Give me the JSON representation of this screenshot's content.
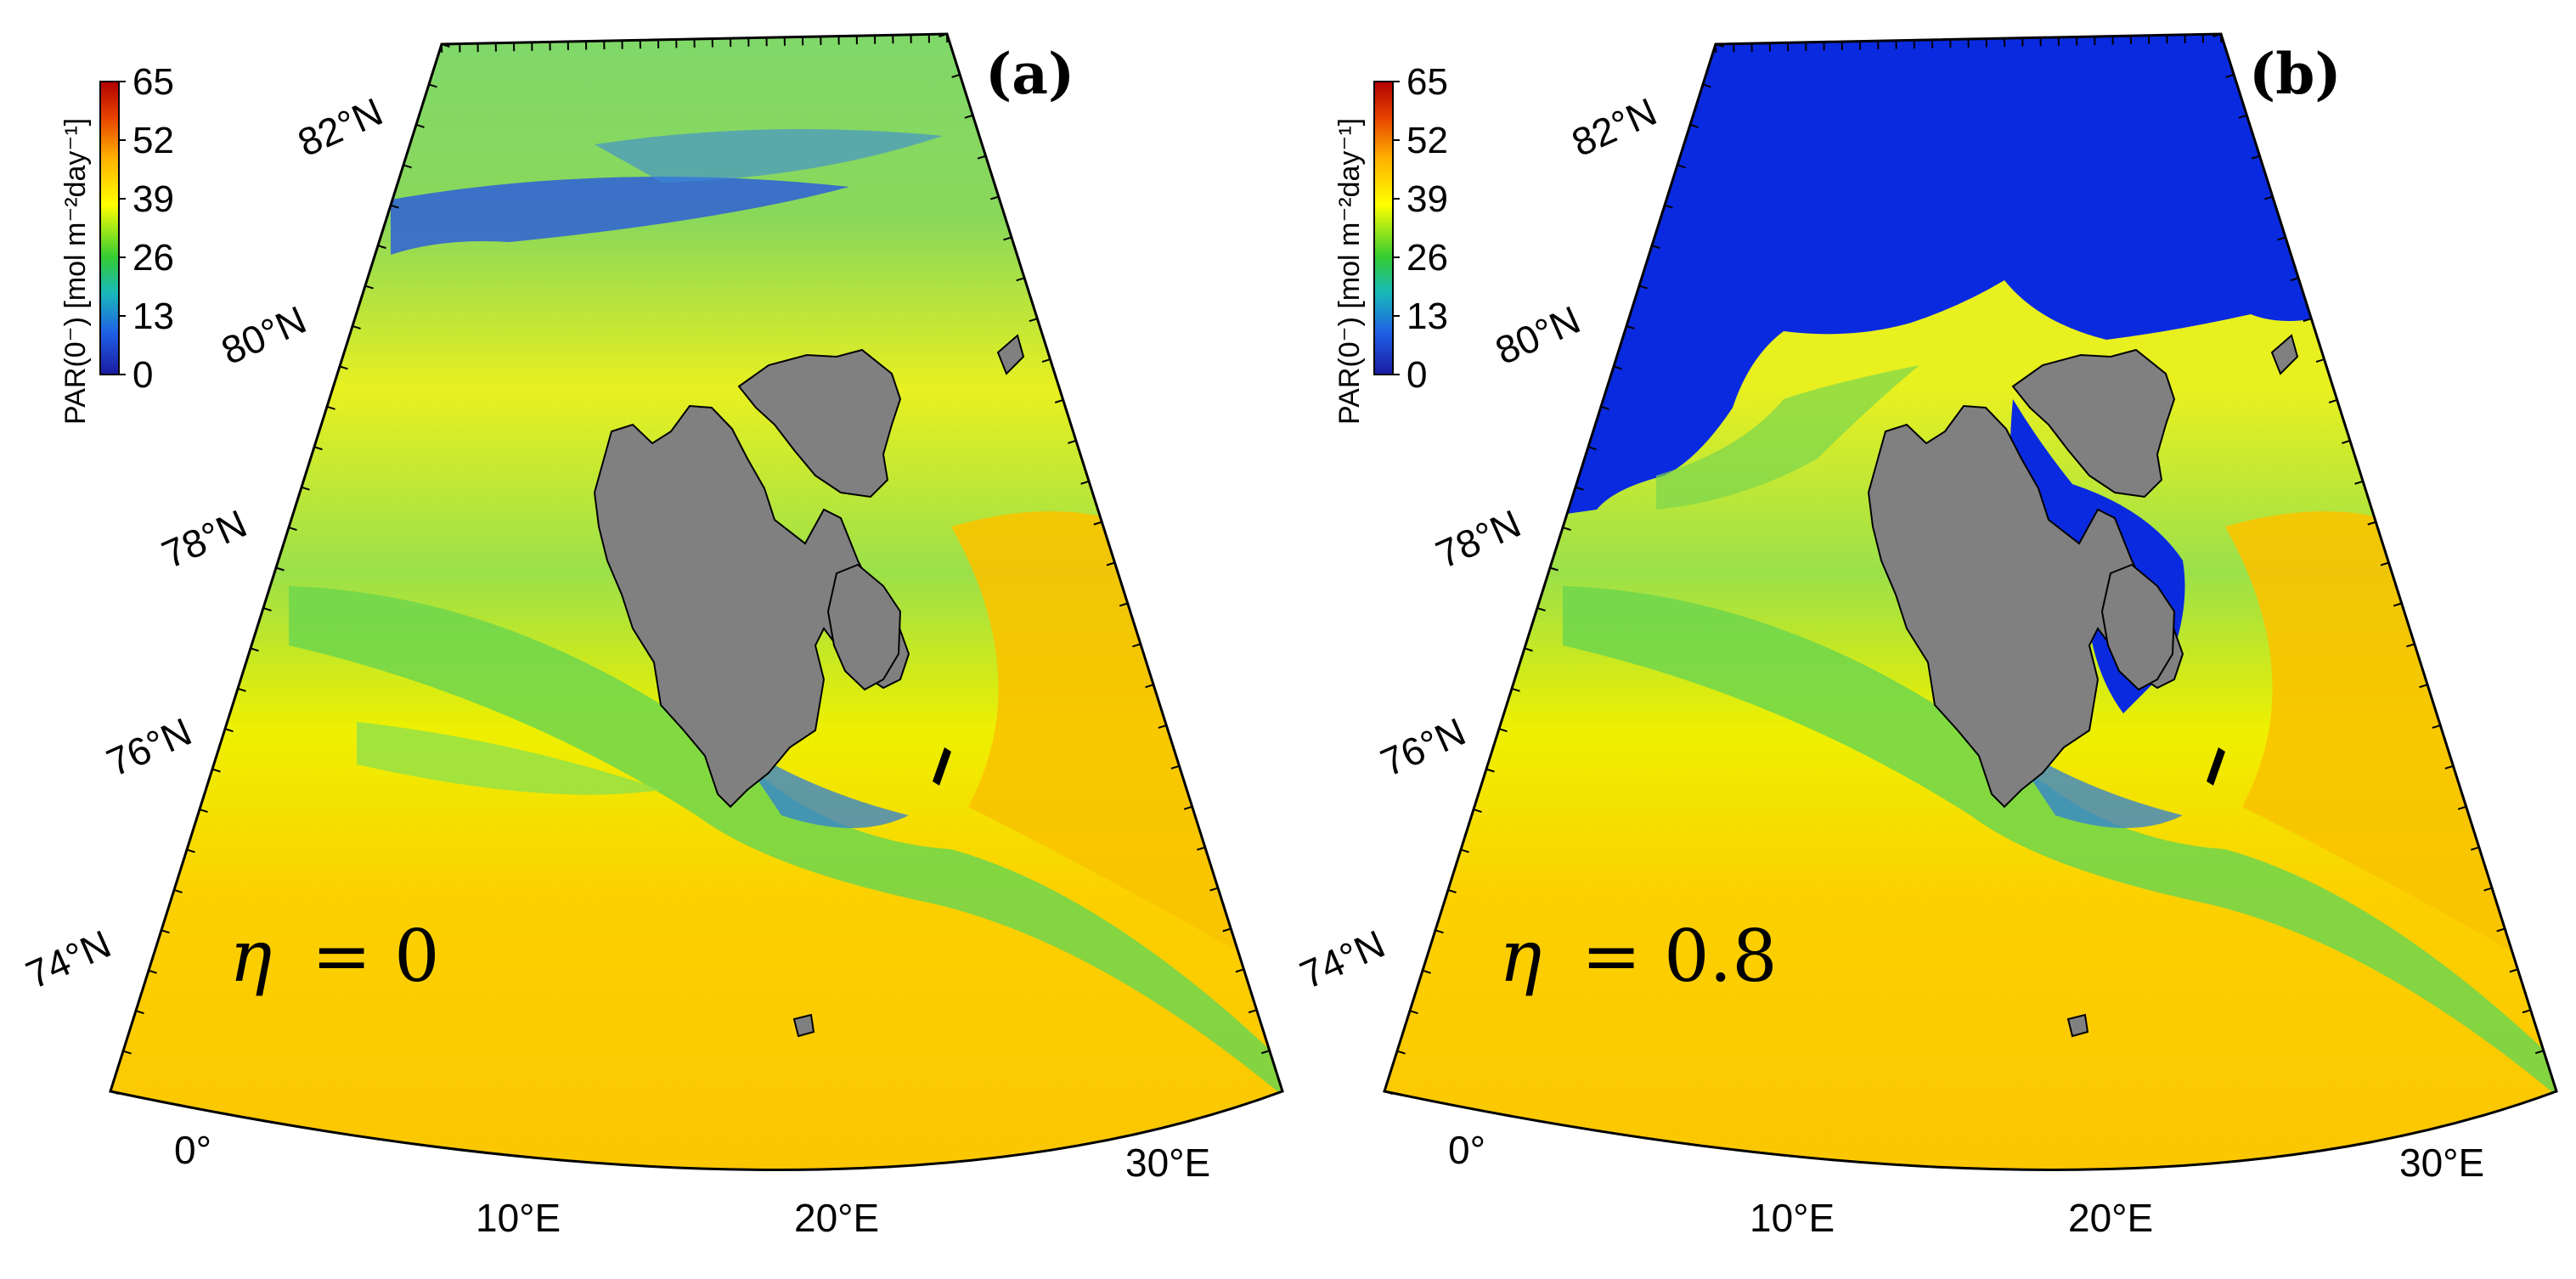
{
  "figure": {
    "panels": [
      {
        "id": "a",
        "letter": "(a)",
        "eta_symbol": "η",
        "eta_value": "= 0",
        "latitude_labels": [
          "82°N",
          "80°N",
          "78°N",
          "76°N",
          "74°N"
        ],
        "longitude_labels": [
          "0°",
          "10°E",
          "20°E",
          "30°E"
        ],
        "ice_covered_north": false
      },
      {
        "id": "b",
        "letter": "(b)",
        "eta_symbol": "η",
        "eta_value": "= 0.8",
        "latitude_labels": [
          "82°N",
          "80°N",
          "78°N",
          "76°N",
          "74°N"
        ],
        "longitude_labels": [
          "0°",
          "10°E",
          "20°E",
          "30°E"
        ],
        "ice_covered_north": true
      }
    ],
    "colorbar": {
      "title": "PAR(0⁻) [mol m⁻²day⁻¹]",
      "ticks": [
        "65",
        "52",
        "39",
        "26",
        "13",
        "0"
      ],
      "min": 0,
      "max": 65,
      "colors": [
        "#1a1aa0",
        "#1f5fe6",
        "#19b9b9",
        "#33cc33",
        "#ffff00",
        "#ffb000",
        "#e64000",
        "#b00000"
      ]
    },
    "colors": {
      "land": "#808080",
      "ice_blue": "#0a2ae0",
      "ocean_yellow": "#ffd000",
      "ocean_green": "#6ad84a",
      "ocean_bright_yellow": "#f2f000"
    }
  }
}
